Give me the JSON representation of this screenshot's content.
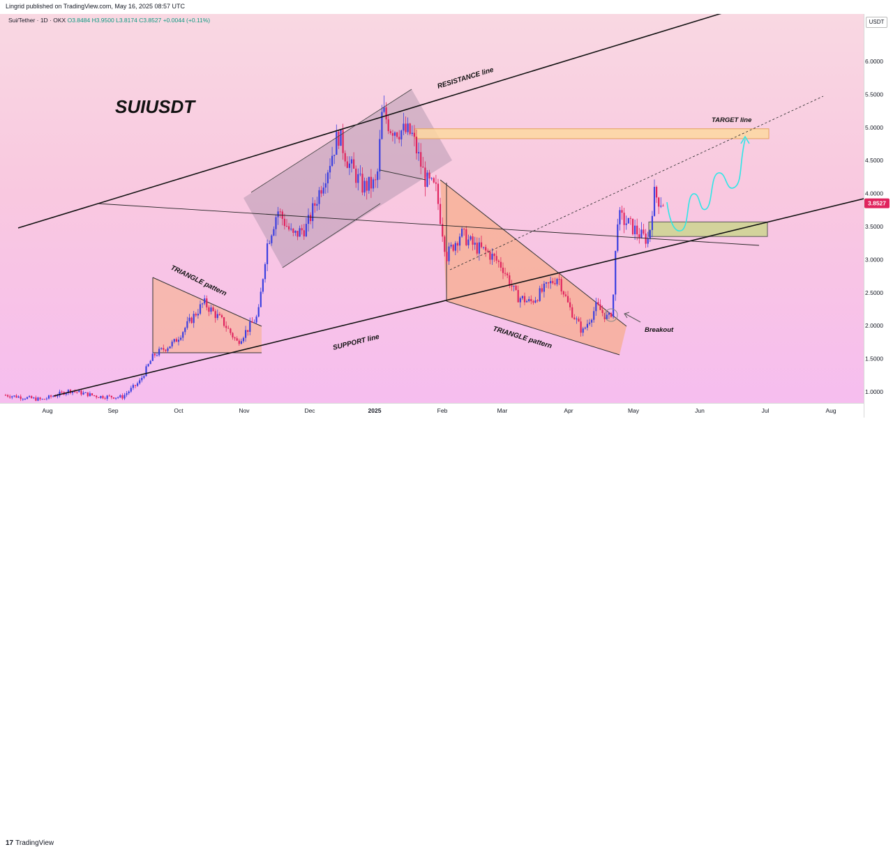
{
  "header": {
    "publisher": "Lingrid published on TradingView.com, May 16, 2025 08:57 UTC"
  },
  "legend": {
    "symbol": "Sui/Tether · 1D · OKX",
    "open": "O3.8484",
    "high": "H3.9500",
    "low": "L3.8174",
    "close": "C3.8527",
    "change": "+0.0044 (+0.11%)"
  },
  "footer": {
    "brand": "TradingView",
    "brand_mark": "17"
  },
  "currency_label": "USDT",
  "chart_data": {
    "type": "candlestick",
    "title": "SUIUSDT",
    "price_axis_ticks": [
      "1.0000",
      "1.5000",
      "2.0000",
      "2.5000",
      "3.0000",
      "3.5000",
      "4.0000",
      "4.5000",
      "5.0000",
      "5.5000",
      "6.0000"
    ],
    "time_axis_ticks": [
      "Aug",
      "Sep",
      "Oct",
      "Nov",
      "Dec",
      "2025",
      "Feb",
      "Mar",
      "Apr",
      "May",
      "Jun",
      "Jul",
      "Aug"
    ],
    "last_price": "3.8527",
    "ylim": [
      0.85,
      6.35
    ],
    "annotations": {
      "resistance": "RESISTANCE line",
      "support": "SUPPORT line",
      "triangle_1": "TRIANGLE pattern",
      "triangle_2": "TRIANGLE pattern",
      "target": "TARGET line",
      "breakout": "Breakout"
    },
    "target_zone": [
      4.83,
      4.98
    ],
    "support_zone": [
      3.35,
      3.57
    ],
    "colors": {
      "up": "#3b3fe0",
      "down": "#e0245e",
      "projection": "#2ee6e6",
      "price_tag": "#e0245e"
    }
  }
}
